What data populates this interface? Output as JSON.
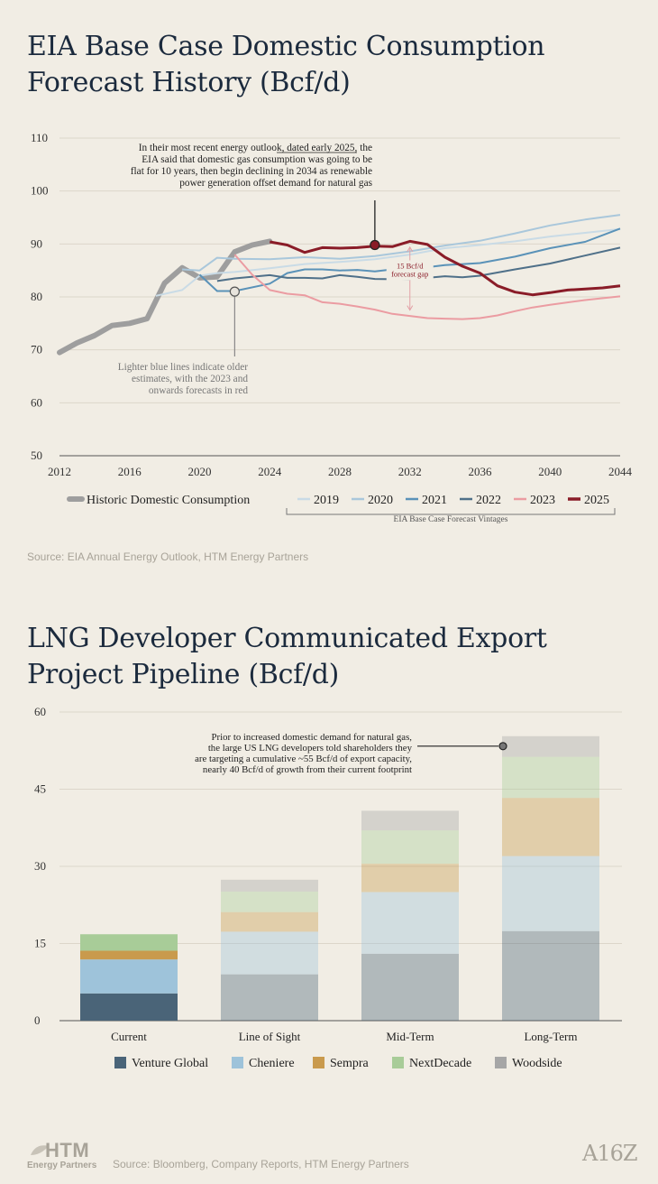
{
  "chart_data": [
    {
      "type": "line",
      "title": "EIA Base Case Domestic Consumption Forecast History (Bcf/d)",
      "xlim": [
        2012,
        2044
      ],
      "ylim": [
        50,
        110
      ],
      "x_ticks": [
        2012,
        2016,
        2020,
        2024,
        2028,
        2032,
        2036,
        2040,
        2044
      ],
      "y_ticks": [
        50,
        60,
        70,
        80,
        90,
        100,
        110
      ],
      "grid": "horizontal",
      "series": [
        {
          "name": "2019",
          "color": "#c9dbe6",
          "points": [
            [
              2017.5,
              80.2
            ],
            [
              2019,
              81.3
            ],
            [
              2020,
              84
            ],
            [
              2021,
              84.5
            ],
            [
              2022,
              84.7
            ],
            [
              2024,
              85.4
            ],
            [
              2026,
              86.2
            ],
            [
              2028,
              86.6
            ],
            [
              2030,
              87.1
            ],
            [
              2032,
              88
            ],
            [
              2034,
              89.2
            ],
            [
              2036,
              89.8
            ],
            [
              2038,
              90.5
            ],
            [
              2040,
              91.4
            ],
            [
              2042,
              92.1
            ],
            [
              2044,
              92.8
            ]
          ]
        },
        {
          "name": "2020",
          "color": "#a9c7db",
          "points": [
            [
              2019,
              85.2
            ],
            [
              2020,
              85
            ],
            [
              2021,
              87.4
            ],
            [
              2022,
              87.2
            ],
            [
              2024,
              87.1
            ],
            [
              2026,
              87.5
            ],
            [
              2028,
              87.2
            ],
            [
              2030,
              87.7
            ],
            [
              2032,
              88.6
            ],
            [
              2034,
              89.7
            ],
            [
              2036,
              90.6
            ],
            [
              2038,
              92
            ],
            [
              2040,
              93.5
            ],
            [
              2042,
              94.6
            ],
            [
              2044,
              95.5
            ]
          ]
        },
        {
          "name": "2021",
          "color": "#5a92b8",
          "points": [
            [
              2020,
              84.2
            ],
            [
              2021,
              81.1
            ],
            [
              2022,
              81.1
            ],
            [
              2024,
              82.5
            ],
            [
              2025,
              84.5
            ],
            [
              2026,
              85.2
            ],
            [
              2027,
              85.2
            ],
            [
              2028,
              85
            ],
            [
              2029,
              85.1
            ],
            [
              2030,
              84.8
            ],
            [
              2031,
              85.2
            ],
            [
              2032,
              85.4
            ],
            [
              2033,
              85.6
            ],
            [
              2034,
              86
            ],
            [
              2036,
              86.4
            ],
            [
              2038,
              87.6
            ],
            [
              2040,
              89.2
            ],
            [
              2042,
              90.4
            ],
            [
              2044,
              92.9
            ]
          ]
        },
        {
          "name": "2022",
          "color": "#4f7089",
          "points": [
            [
              2021,
              83
            ],
            [
              2022,
              83.5
            ],
            [
              2024,
              84.1
            ],
            [
              2025,
              83.6
            ],
            [
              2026,
              83.6
            ],
            [
              2027,
              83.5
            ],
            [
              2028,
              84.1
            ],
            [
              2029,
              83.8
            ],
            [
              2030,
              83.4
            ],
            [
              2032,
              83.3
            ],
            [
              2034,
              83.9
            ],
            [
              2035,
              83.7
            ],
            [
              2036,
              84
            ],
            [
              2038,
              85.2
            ],
            [
              2040,
              86.3
            ],
            [
              2042,
              87.8
            ],
            [
              2044,
              89.3
            ]
          ]
        },
        {
          "name": "2023",
          "color": "#eb9ca2",
          "points": [
            [
              2022,
              88
            ],
            [
              2023,
              84.2
            ],
            [
              2024,
              81.3
            ],
            [
              2025,
              80.6
            ],
            [
              2026,
              80.3
            ],
            [
              2027,
              79
            ],
            [
              2028,
              78.7
            ],
            [
              2029,
              78.2
            ],
            [
              2030,
              77.6
            ],
            [
              2031,
              76.8
            ],
            [
              2032,
              76.4
            ],
            [
              2033,
              76
            ],
            [
              2034,
              75.9
            ],
            [
              2035,
              75.8
            ],
            [
              2036,
              76
            ],
            [
              2037,
              76.5
            ],
            [
              2038,
              77.3
            ],
            [
              2039,
              78
            ],
            [
              2040,
              78.5
            ],
            [
              2042,
              79.4
            ],
            [
              2044,
              80.1
            ]
          ]
        },
        {
          "name": "2025",
          "color": "#8a1c28",
          "points": [
            [
              2024,
              90.4
            ],
            [
              2025,
              89.8
            ],
            [
              2026,
              88.4
            ],
            [
              2027,
              89.3
            ],
            [
              2028,
              89.2
            ],
            [
              2029,
              89.3
            ],
            [
              2030,
              89.6
            ],
            [
              2031,
              89.5
            ],
            [
              2032,
              90.5
            ],
            [
              2033,
              89.9
            ],
            [
              2034,
              87.5
            ],
            [
              2035,
              85.8
            ],
            [
              2036,
              84.5
            ],
            [
              2037,
              82.1
            ],
            [
              2038,
              80.9
            ],
            [
              2039,
              80.4
            ],
            [
              2040,
              80.8
            ],
            [
              2041,
              81.3
            ],
            [
              2042,
              81.5
            ],
            [
              2043,
              81.7
            ],
            [
              2044,
              82.1
            ]
          ]
        }
      ],
      "historic": {
        "name": "Historic Domestic Consumption",
        "color": "#9e9e9e",
        "points": [
          [
            2012,
            69.5
          ],
          [
            2013,
            71.3
          ],
          [
            2014,
            72.7
          ],
          [
            2015,
            74.6
          ],
          [
            2016,
            75
          ],
          [
            2017,
            75.9
          ],
          [
            2018,
            82.6
          ],
          [
            2019,
            85.5
          ],
          [
            2020,
            83.6
          ],
          [
            2021,
            83.8
          ],
          [
            2022,
            88.5
          ],
          [
            2023,
            89.8
          ],
          [
            2024,
            90.5
          ]
        ]
      },
      "legend_group_label": "EIA Base Case Forecast Vintages",
      "annotations": [
        {
          "x": 2030,
          "y": 89.8,
          "text": "In their most recent energy outlook, dated early 2025, the EIA said that domestic gas consumption was going to be flat for 10 years, then begin declining in 2034 as renewable power generation offset demand for natural gas",
          "lines": [
            "In their most recent energy outlook, dated early 2025, the",
            "EIA said that domestic gas consumption was going to be",
            "flat for 10 years, then begin declining in 2034 as renewable",
            "power generation offset demand for natural gas"
          ]
        },
        {
          "x": 2022,
          "y": 81,
          "text": "Lighter blue lines indicate older estimates, with the 2023 and onwards forecasts in red",
          "lines": [
            "Lighter blue lines indicate older",
            "estimates, with the 2023 and",
            "onwards forecasts in red"
          ]
        },
        {
          "x": 2032,
          "text": "15 Bcf/d forecast gap",
          "lines": [
            "15 Bcf/d",
            "forecast gap"
          ]
        }
      ]
    },
    {
      "type": "stacked-bar",
      "title": "LNG Developer Communicated Export Project Pipeline (Bcf/d)",
      "categories": [
        "Current",
        "Line of Sight",
        "Mid-Term",
        "Long-Term"
      ],
      "ylim": [
        0,
        60
      ],
      "y_ticks": [
        0,
        15,
        30,
        45,
        60
      ],
      "grid": "horizontal",
      "series": [
        {
          "name": "Venture Global",
          "color": "#4a6478",
          "values": [
            5.3,
            9,
            13,
            17.4
          ]
        },
        {
          "name": "Cheniere",
          "color": "#9ec3da",
          "values": [
            6.6,
            8.3,
            12,
            14.6
          ]
        },
        {
          "name": "Sempra",
          "color": "#c99a4d",
          "values": [
            1.7,
            3.8,
            5.5,
            11.3
          ]
        },
        {
          "name": "NextDecade",
          "color": "#a8cc98",
          "values": [
            3.2,
            4,
            6.5,
            8
          ]
        },
        {
          "name": "Woodside",
          "color": "#a6a6a6",
          "values": [
            0,
            2.3,
            3.8,
            4
          ]
        }
      ],
      "highlighted_category": "Current",
      "annotation": {
        "category": "Long-Term",
        "text": "Prior to increased domestic demand for natural gas, the large US LNG developers told shareholders they are targeting a cumulative ~55 Bcf/d of export capacity, nearly 40 Bcf/d of growth from their current footprint",
        "lines": [
          "Prior to increased domestic demand for natural gas,",
          "the large US LNG developers told shareholders they",
          "are targeting a cumulative ~55 Bcf/d of export capacity,",
          "nearly 40 Bcf/d of growth from their current footprint"
        ]
      }
    }
  ],
  "header": {
    "title1": "EIA Base Case Domestic Consumption Forecast History (Bcf/d)",
    "title2": "LNG Developer Communicated Export Project Pipeline (Bcf/d)"
  },
  "footer": {
    "source1": "Source: EIA Annual Energy Outlook, HTM Energy Partners",
    "source2": "Source: Bloomberg, Company Reports, HTM Energy Partners",
    "logo_htm": "HTM",
    "logo_htm_sub": "Energy Partners",
    "logo_a16z": "A16Z"
  }
}
